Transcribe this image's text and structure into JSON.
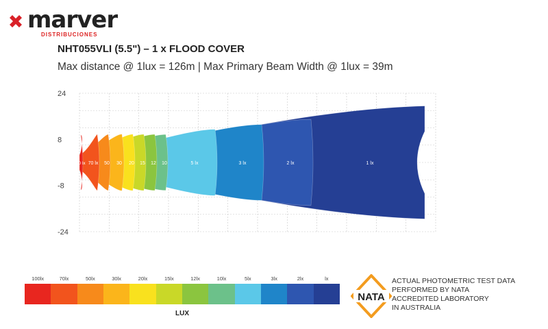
{
  "brand": {
    "name": "marver",
    "tagline": "DISTRIBUCIONES",
    "mark_color": "#d92128"
  },
  "header": {
    "title": "NHT055VLI (5.5\") – 1 x FLOOD COVER",
    "subtitle": "Max distance @ 1lux = 126m | Max Primary Beam Width @ 1lux = 39m"
  },
  "chart_data": {
    "type": "heatmap",
    "title": "",
    "xlabel": "",
    "ylabel": "",
    "y_ticks": [
      "24",
      "8",
      "-8",
      "-24"
    ],
    "ylim": [
      -24,
      24
    ],
    "xlim": [
      0,
      130
    ],
    "grid": true,
    "contours": [
      {
        "label": "100 lx",
        "lux": 100,
        "reach_m": 2,
        "color": "#e8261f"
      },
      {
        "label": "70 lx",
        "lux": 70,
        "reach_m": 8,
        "color": "#f2541d"
      },
      {
        "label": "50",
        "lux": 50,
        "reach_m": 12,
        "color": "#f78a1b"
      },
      {
        "label": "30",
        "lux": 30,
        "reach_m": 17,
        "color": "#fbb51b"
      },
      {
        "label": "20",
        "lux": 20,
        "reach_m": 21,
        "color": "#f9e11e"
      },
      {
        "label": "15",
        "lux": 15,
        "reach_m": 25,
        "color": "#c9d828"
      },
      {
        "label": "12",
        "lux": 12,
        "reach_m": 29,
        "color": "#8bc53f"
      },
      {
        "label": "10",
        "lux": 10,
        "reach_m": 33,
        "color": "#6cc18a"
      },
      {
        "label": "5 lx",
        "lux": 5,
        "reach_m": 51,
        "color": "#5bc8e8"
      },
      {
        "label": "3 lx",
        "lux": 3,
        "reach_m": 68,
        "color": "#1f85c9"
      },
      {
        "label": "2 lx",
        "lux": 2,
        "reach_m": 86,
        "color": "#2e56b0"
      },
      {
        "label": "1 lx",
        "lux": 1,
        "reach_m": 126,
        "color": "#253f94"
      }
    ]
  },
  "legend": {
    "title": "LUX",
    "items": [
      {
        "label": "100lx",
        "color": "#e8261f"
      },
      {
        "label": "70lx",
        "color": "#f2541d"
      },
      {
        "label": "50lx",
        "color": "#f78a1b"
      },
      {
        "label": "30lx",
        "color": "#fbb51b"
      },
      {
        "label": "20lx",
        "color": "#f9e11e"
      },
      {
        "label": "15lx",
        "color": "#c9d828"
      },
      {
        "label": "12lx",
        "color": "#8bc53f"
      },
      {
        "label": "10lx",
        "color": "#6cc18a"
      },
      {
        "label": "5lx",
        "color": "#5bc8e8"
      },
      {
        "label": "3lx",
        "color": "#1f85c9"
      },
      {
        "label": "2lx",
        "color": "#2e56b0"
      },
      {
        "label": "lx",
        "color": "#253f94"
      }
    ]
  },
  "nata": {
    "badge": "NATA",
    "badge_color": "#f39c1f",
    "lines": [
      "ACTUAL PHOTOMETRIC TEST DATA",
      "PERFORMED BY NATA",
      "ACCREDITED LABORATORY",
      "IN AUSTRALIA"
    ]
  }
}
